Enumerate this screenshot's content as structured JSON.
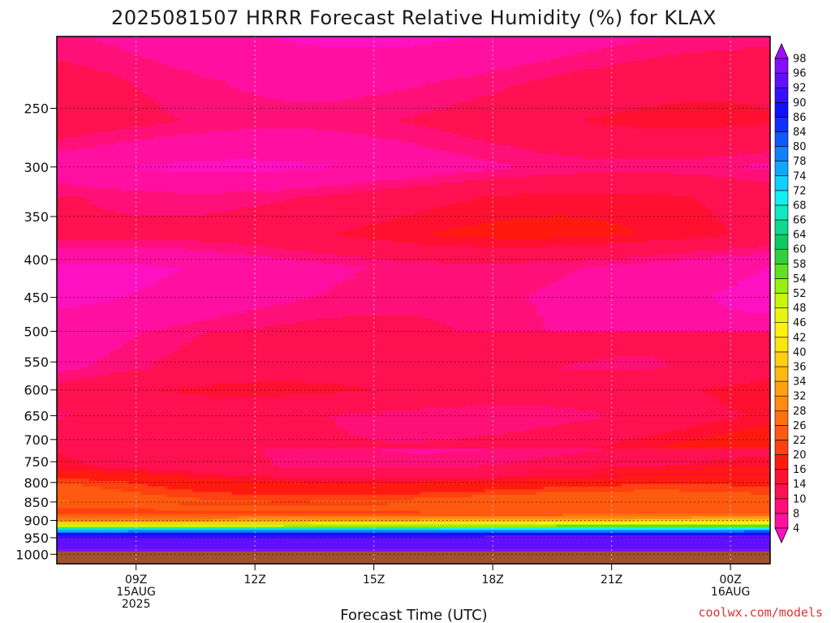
{
  "chart_data": {
    "type": "heatmap",
    "title": "2025081507 HRRR Forecast Relative Humidity (%) for KLAX",
    "xlabel": "Forecast Time (UTC)",
    "ylabel": "",
    "credit": "coolwx.com/models",
    "x_ticks": [
      {
        "hour": 9,
        "lines": [
          "09Z",
          "15AUG",
          "2025"
        ]
      },
      {
        "hour": 12,
        "lines": [
          "12Z"
        ]
      },
      {
        "hour": 15,
        "lines": [
          "15Z"
        ]
      },
      {
        "hour": 18,
        "lines": [
          "18Z"
        ]
      },
      {
        "hour": 21,
        "lines": [
          "21Z"
        ]
      },
      {
        "hour": 24,
        "lines": [
          "00Z",
          "16AUG"
        ]
      }
    ],
    "xlim_hours": [
      7,
      25
    ],
    "y_ticks": [
      250,
      300,
      350,
      400,
      450,
      500,
      550,
      600,
      650,
      700,
      750,
      800,
      850,
      900,
      950,
      1000
    ],
    "y_axis": "pressure_hPa_log",
    "ylim": [
      1030,
      200
    ],
    "grid": true,
    "colorbar": {
      "levels": [
        4,
        8,
        10,
        14,
        16,
        20,
        22,
        26,
        28,
        32,
        34,
        36,
        40,
        42,
        46,
        48,
        52,
        54,
        58,
        60,
        64,
        66,
        68,
        72,
        74,
        78,
        80,
        84,
        86,
        90,
        92,
        96,
        98
      ],
      "colors": [
        "#ff10c0",
        "#ff10a0",
        "#ff1078",
        "#ff1050",
        "#ff1030",
        "#ff1a10",
        "#ff4010",
        "#ff5a10",
        "#ff7010",
        "#ff8a10",
        "#ffa010",
        "#ffb810",
        "#ffd010",
        "#ffe410",
        "#fff010",
        "#e8f510",
        "#c8f510",
        "#98f010",
        "#60e020",
        "#30d040",
        "#10c860",
        "#10d890",
        "#10e8c0",
        "#10f0f0",
        "#10d0ff",
        "#10a8ff",
        "#1080ff",
        "#1058ff",
        "#1030ff",
        "#1010ff",
        "#3810ff",
        "#6010ff",
        "#8010ff",
        "#a010ff"
      ],
      "extend": "both",
      "position": "right"
    },
    "profile_at_09Z": [
      {
        "p": 200,
        "rh": 6
      },
      {
        "p": 230,
        "rh": 10
      },
      {
        "p": 260,
        "rh": 12
      },
      {
        "p": 300,
        "rh": 6
      },
      {
        "p": 330,
        "rh": 12
      },
      {
        "p": 370,
        "rh": 14
      },
      {
        "p": 410,
        "rh": 6
      },
      {
        "p": 450,
        "rh": 6
      },
      {
        "p": 500,
        "rh": 8
      },
      {
        "p": 560,
        "rh": 8
      },
      {
        "p": 600,
        "rh": 11
      },
      {
        "p": 650,
        "rh": 8
      },
      {
        "p": 700,
        "rh": 10
      },
      {
        "p": 760,
        "rh": 12
      },
      {
        "p": 800,
        "rh": 20
      },
      {
        "p": 850,
        "rh": 26
      },
      {
        "p": 880,
        "rh": 20
      },
      {
        "p": 905,
        "rh": 34
      },
      {
        "p": 915,
        "rh": 50
      },
      {
        "p": 925,
        "rh": 70
      },
      {
        "p": 940,
        "rh": 90
      },
      {
        "p": 960,
        "rh": 95
      },
      {
        "p": 980,
        "rh": 96
      },
      {
        "p": 1000,
        "rh": 97
      }
    ],
    "surface_band": "ground"
  }
}
